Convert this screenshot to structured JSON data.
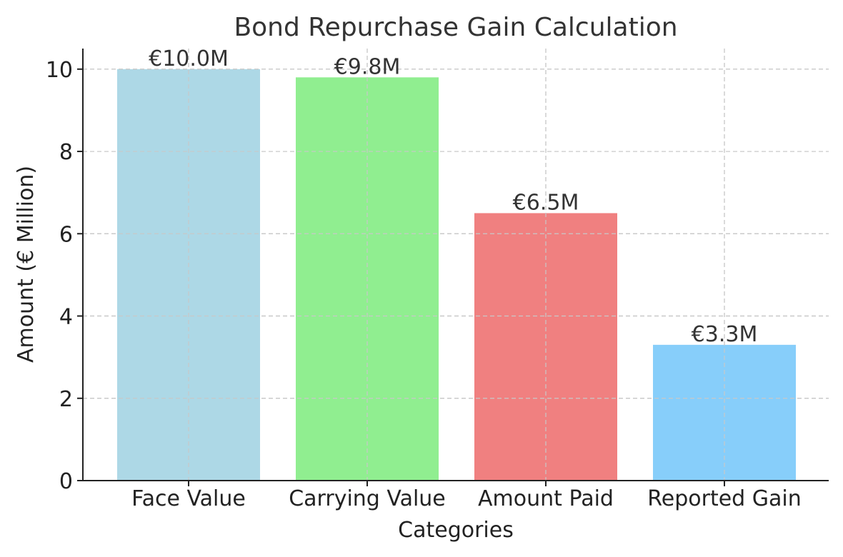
{
  "chart_data": {
    "type": "bar",
    "title": "Bond Repurchase Gain Calculation",
    "xlabel": "Categories",
    "ylabel": "Amount (€ Million)",
    "categories": [
      "Face Value",
      "Carrying Value",
      "Amount Paid",
      "Reported Gain"
    ],
    "values": [
      10.0,
      9.8,
      6.5,
      3.3
    ],
    "data_labels": [
      "€10.0M",
      "€9.8M",
      "€6.5M",
      "€3.3M"
    ],
    "colors": [
      "#add8e6",
      "#90ee90",
      "#f08080",
      "#87cefa"
    ],
    "ylim": [
      0,
      10.5
    ],
    "yticks": [
      0,
      2,
      4,
      6,
      8,
      10
    ],
    "grid": true
  }
}
